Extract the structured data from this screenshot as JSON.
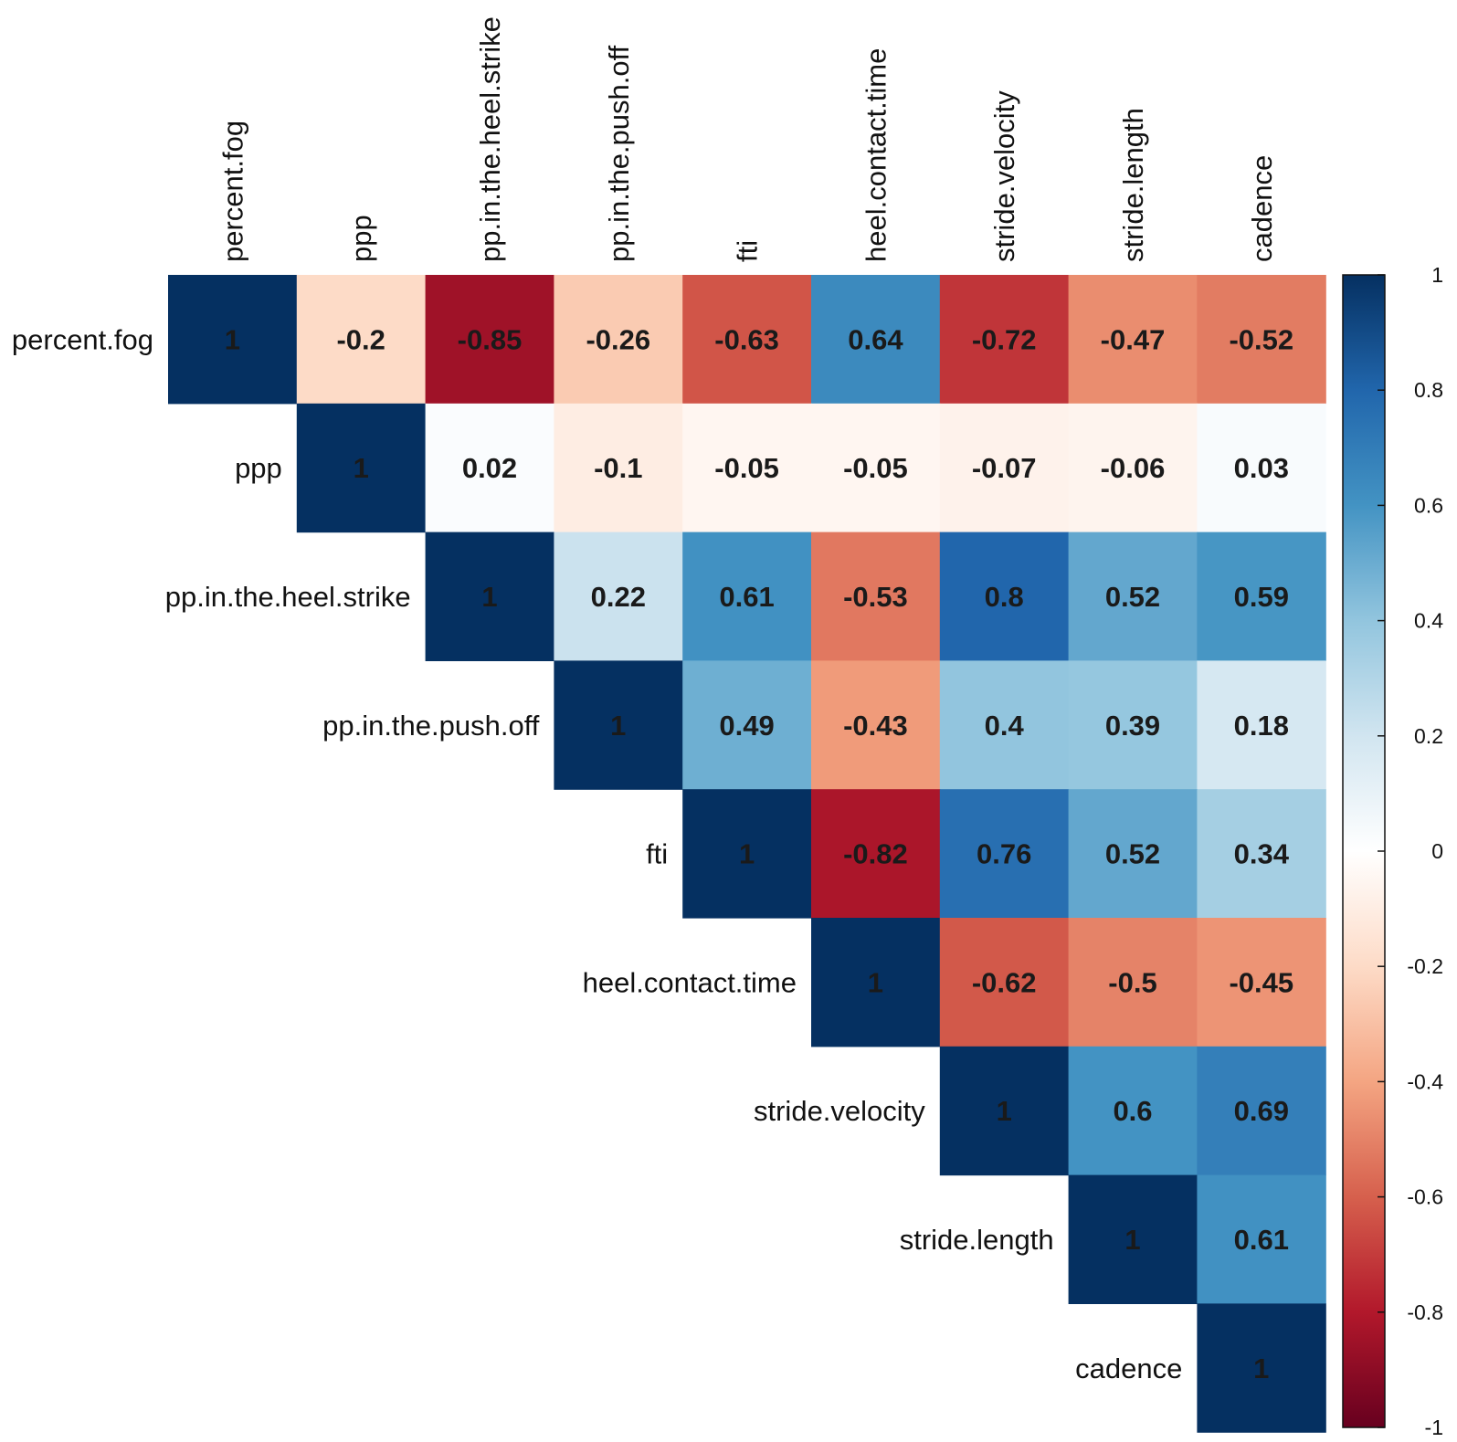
{
  "chart_data": {
    "type": "heatmap",
    "variables": [
      "percent.fog",
      "ppp",
      "pp.in.the.heel.strike",
      "pp.in.the.push.off",
      "fti",
      "heel.contact.time",
      "stride.velocity",
      "stride.length",
      "cadence"
    ],
    "matrix": [
      [
        1,
        -0.2,
        -0.85,
        -0.26,
        -0.63,
        0.64,
        -0.72,
        -0.47,
        -0.52
      ],
      [
        null,
        1,
        0.02,
        -0.1,
        -0.05,
        -0.05,
        -0.07,
        -0.06,
        0.03
      ],
      [
        null,
        null,
        1,
        0.22,
        0.61,
        -0.53,
        0.8,
        0.52,
        0.59
      ],
      [
        null,
        null,
        null,
        1,
        0.49,
        -0.43,
        0.4,
        0.39,
        0.18
      ],
      [
        null,
        null,
        null,
        null,
        1,
        -0.82,
        0.76,
        0.52,
        0.34
      ],
      [
        null,
        null,
        null,
        null,
        null,
        1,
        -0.62,
        -0.5,
        -0.45
      ],
      [
        null,
        null,
        null,
        null,
        null,
        null,
        1,
        0.6,
        0.69
      ],
      [
        null,
        null,
        null,
        null,
        null,
        null,
        null,
        1,
        0.61
      ],
      [
        null,
        null,
        null,
        null,
        null,
        null,
        null,
        null,
        1
      ]
    ],
    "layout": "upper-triangle",
    "color_scale": {
      "range": [
        -1,
        1
      ],
      "ticks": [
        "1",
        "0.8",
        "0.6",
        "0.4",
        "0.2",
        "0",
        "-0.2",
        "-0.4",
        "-0.6",
        "-0.8",
        "-1"
      ],
      "stops": [
        "#67001F",
        "#B2182B",
        "#D6604D",
        "#F4A582",
        "#FDDBC7",
        "#FFFFFF",
        "#D1E5F0",
        "#92C5DE",
        "#4393C3",
        "#2166AC",
        "#053061"
      ]
    },
    "legend_placement": "right"
  }
}
